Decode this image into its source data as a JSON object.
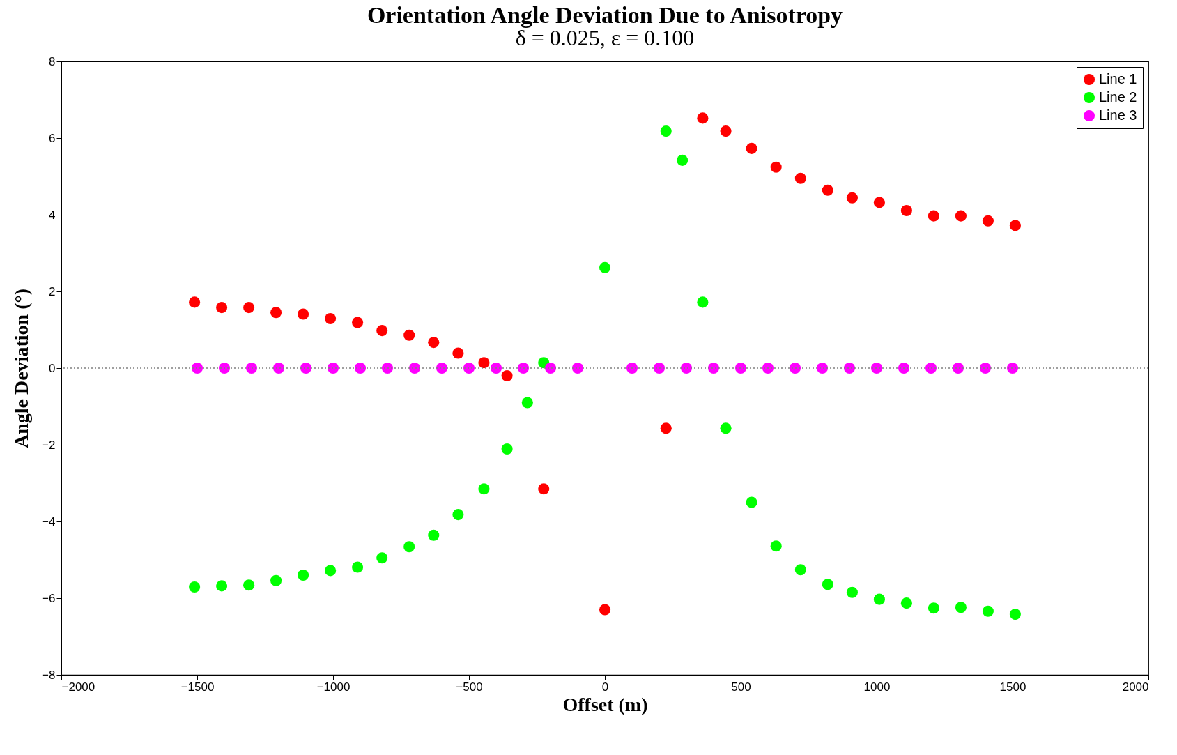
{
  "chart_data": {
    "type": "scatter",
    "title": "Orientation Angle Deviation Due to Anisotropy",
    "subtitle": "δ = 0.025, ε = 0.100",
    "xlabel": "Offset (m)",
    "ylabel": "Angle Deviation (°)",
    "xlim": [
      -2000,
      2000
    ],
    "xticks": [
      -2000,
      -1500,
      -1000,
      -500,
      0,
      500,
      1000,
      1500,
      2000
    ],
    "ylim": [
      -8,
      8
    ],
    "yticks": [
      -8,
      -6,
      -4,
      -2,
      0,
      2,
      4,
      6,
      8
    ],
    "grid": false,
    "legend": "top right",
    "marker": "circle",
    "ref_lines": [
      {
        "axis": "y",
        "value": 0,
        "color": "#808080",
        "line_style": "dotted"
      }
    ],
    "series": [
      {
        "name": "Line 1",
        "color": "#ff0000",
        "x": [
          -1510,
          -1410,
          -1310,
          -1210,
          -1110,
          -1010,
          -910,
          -820,
          -720,
          -630,
          -540,
          -445,
          -360,
          -225,
          0,
          225,
          360,
          445,
          540,
          630,
          720,
          820,
          910,
          1010,
          1110,
          1210,
          1310,
          1410,
          1510
        ],
        "values": [
          1.72,
          1.58,
          1.58,
          1.45,
          1.41,
          1.29,
          1.19,
          0.98,
          0.86,
          0.67,
          0.39,
          0.14,
          -0.2,
          -3.15,
          -6.3,
          -1.57,
          6.52,
          6.18,
          5.73,
          5.24,
          4.95,
          4.64,
          4.44,
          4.32,
          4.11,
          3.97,
          3.97,
          3.84,
          3.72
        ]
      },
      {
        "name": "Line 2",
        "color": "#00ff00",
        "x": [
          -1510,
          -1410,
          -1310,
          -1210,
          -1110,
          -1010,
          -910,
          -820,
          -720,
          -630,
          -540,
          -445,
          -360,
          -285,
          -225,
          0,
          225,
          285,
          360,
          445,
          540,
          630,
          720,
          820,
          910,
          1010,
          1110,
          1210,
          1310,
          1410,
          1510
        ],
        "values": [
          -5.71,
          -5.68,
          -5.66,
          -5.54,
          -5.4,
          -5.28,
          -5.19,
          -4.95,
          -4.66,
          -4.36,
          -3.82,
          -3.15,
          -2.11,
          -0.9,
          0.14,
          2.62,
          6.18,
          5.42,
          1.72,
          -1.57,
          -3.5,
          -4.64,
          -5.26,
          -5.64,
          -5.85,
          -6.03,
          -6.13,
          -6.26,
          -6.24,
          -6.34,
          -6.42
        ]
      },
      {
        "name": "Line 3",
        "color": "#ff00ff",
        "x": [
          -1500,
          -1400,
          -1300,
          -1200,
          -1100,
          -1000,
          -900,
          -800,
          -700,
          -600,
          -500,
          -400,
          -300,
          -200,
          -100,
          100,
          200,
          300,
          400,
          500,
          600,
          700,
          800,
          900,
          1000,
          1100,
          1200,
          1300,
          1400,
          1500
        ],
        "values": [
          0,
          0,
          0,
          0,
          0,
          0,
          0,
          0,
          0,
          0,
          0,
          0,
          0,
          0,
          0,
          0,
          0,
          0,
          0,
          0,
          0,
          0,
          0,
          0,
          0,
          0,
          0,
          0,
          0,
          0
        ]
      }
    ]
  }
}
